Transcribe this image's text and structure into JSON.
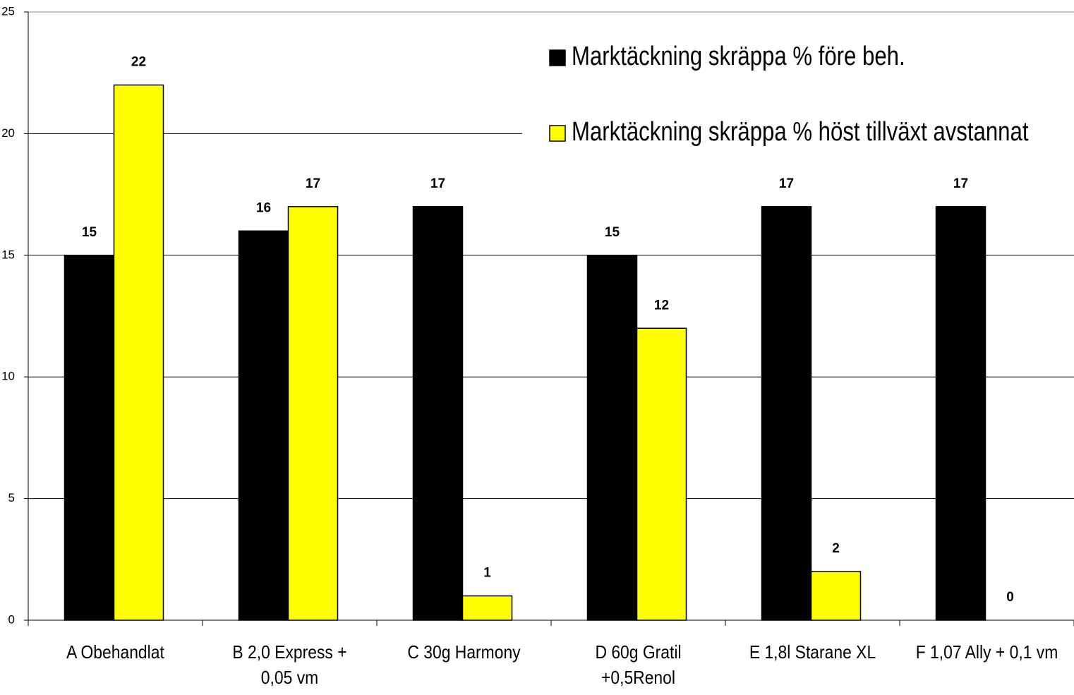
{
  "chart_data": {
    "type": "bar",
    "categories": [
      "A Obehandlat",
      "B 2,0 Express +\n0,05 vm",
      "C 30g Harmony",
      "D 60g Gratil\n+0,5Renol",
      "E 1,8l Starane XL",
      "F 1,07 Ally + 0,1 vm"
    ],
    "series": [
      {
        "name": "Marktäckning skräppa % före beh.",
        "color": "#000000",
        "values": [
          15,
          16,
          17,
          15,
          17,
          17
        ]
      },
      {
        "name": "Marktäckning skräppa % höst tillväxt avstannat",
        "color": "#ffff00",
        "values": [
          22,
          17,
          1,
          12,
          2,
          0
        ]
      }
    ],
    "ylim": [
      0,
      25
    ],
    "yticks": [
      0,
      5,
      10,
      15,
      20,
      25
    ],
    "grid": true,
    "legend": "top-right"
  }
}
